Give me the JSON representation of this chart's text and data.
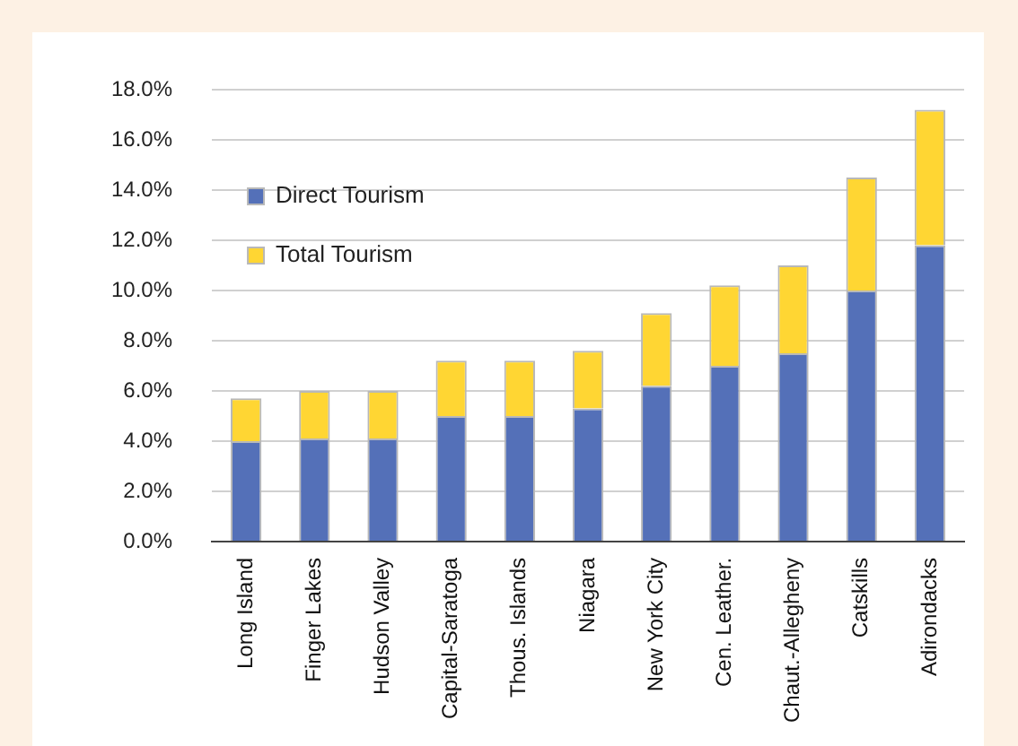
{
  "chart_data": {
    "type": "bar",
    "stacked": true,
    "categories": [
      "Long Island",
      "Finger Lakes",
      "Hudson Valley",
      "Capital-Saratoga",
      "Thous. Islands",
      "Niagara",
      "New York City",
      "Cen. Leather.",
      "Chaut.-Allegheny",
      "Catskills",
      "Adirondacks"
    ],
    "series": [
      {
        "name": "Direct Tourism",
        "color": "#5470b8",
        "values": [
          4.0,
          4.1,
          4.1,
          5.0,
          5.0,
          5.3,
          6.2,
          7.0,
          7.5,
          10.0,
          11.8
        ]
      },
      {
        "name": "Total Tourism",
        "color": "#ffd633",
        "values": [
          1.7,
          1.9,
          1.9,
          2.2,
          2.2,
          2.3,
          2.9,
          3.2,
          3.5,
          4.5,
          5.4
        ]
      }
    ],
    "ylim": [
      0,
      18
    ],
    "yticks": [
      {
        "value": 0,
        "label": "0.0%"
      },
      {
        "value": 2,
        "label": "2.0%"
      },
      {
        "value": 4,
        "label": "4.0%"
      },
      {
        "value": 6,
        "label": "6.0%"
      },
      {
        "value": 8,
        "label": "8.0%"
      },
      {
        "value": 10,
        "label": "10.0%"
      },
      {
        "value": 12,
        "label": "12.0%"
      },
      {
        "value": 14,
        "label": "14.0%"
      },
      {
        "value": 16,
        "label": "16.0%"
      },
      {
        "value": 18,
        "label": "18.0%"
      }
    ],
    "grid": "y",
    "legend": "top"
  }
}
